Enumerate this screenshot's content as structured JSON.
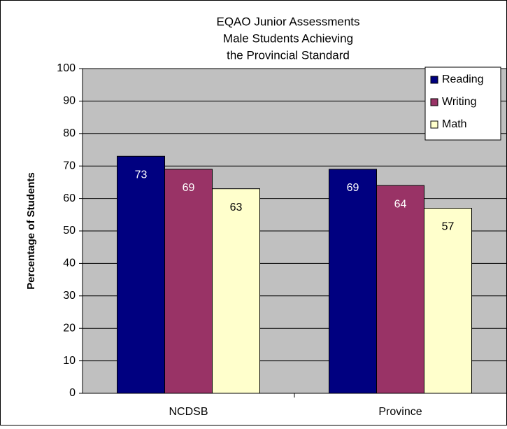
{
  "chart_data": {
    "type": "bar",
    "title": [
      "EQAO Junior Assessments",
      "Male Students Achieving",
      "the Provincial Standard"
    ],
    "y_label": "Percentage of Students",
    "categories": [
      "NCDSB",
      "Province"
    ],
    "series": [
      {
        "name": "Reading",
        "color": "#000080",
        "label_color": "#ffffff",
        "values": [
          73,
          69
        ]
      },
      {
        "name": "Writing",
        "color": "#993366",
        "label_color": "#ffffff",
        "values": [
          69,
          64
        ]
      },
      {
        "name": "Math",
        "color": "#ffffcc",
        "label_color": "#000000",
        "values": [
          63,
          57
        ]
      }
    ],
    "ylim": [
      0,
      100
    ],
    "yticks": [
      0,
      10,
      20,
      30,
      40,
      50,
      60,
      70,
      80,
      90,
      100
    ],
    "grid": true,
    "legend": "top-right"
  }
}
